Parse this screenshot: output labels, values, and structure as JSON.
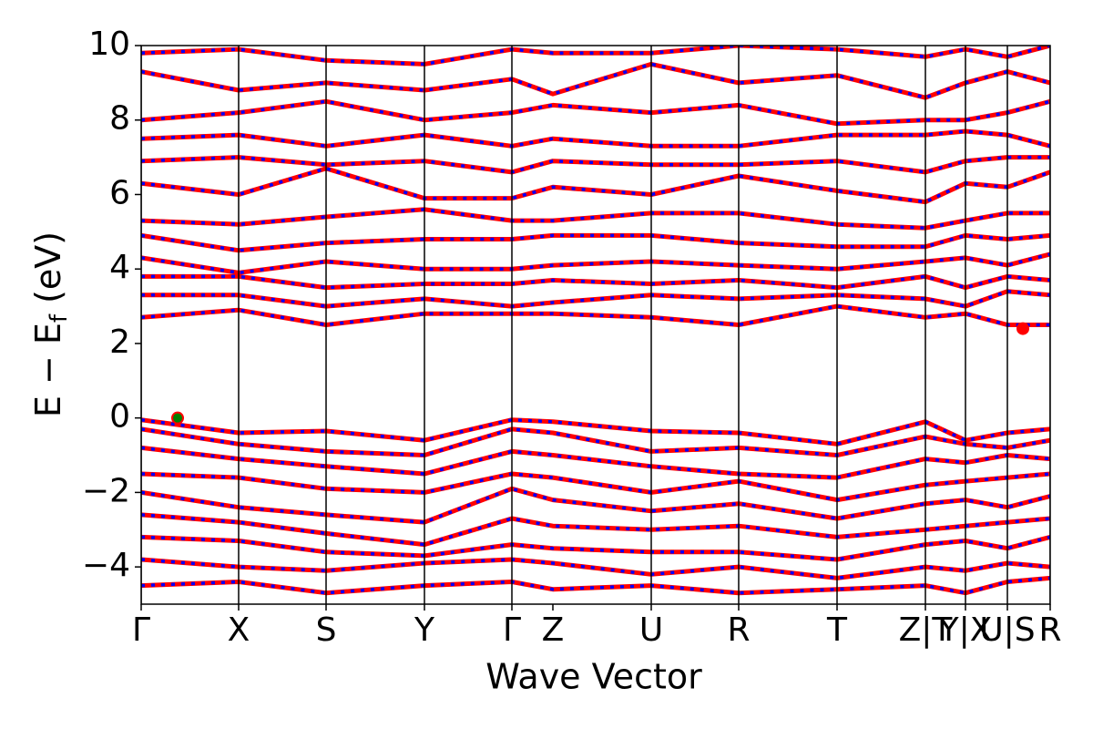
{
  "chart_data": {
    "type": "band-structure",
    "ylabel_parts": [
      "E − E",
      "f",
      "(eV)"
    ],
    "xlabel": "Wave Vector",
    "xlim": [
      0,
      9.98
    ],
    "ylim": [
      -5,
      10
    ],
    "yticks": [
      {
        "value": -4,
        "label": "−4"
      },
      {
        "value": -2,
        "label": "−2"
      },
      0,
      2,
      4,
      6,
      8,
      10
    ],
    "xticks": [
      {
        "value": 0,
        "label": "Γ"
      },
      {
        "value": 1.07,
        "label": "X"
      },
      {
        "value": 2.03,
        "label": "S"
      },
      {
        "value": 3.11,
        "label": "Y"
      },
      {
        "value": 4.07,
        "label": "Γ"
      },
      {
        "value": 4.52,
        "label": "Z"
      },
      {
        "value": 5.6,
        "label": "U"
      },
      {
        "value": 6.56,
        "label": "R"
      },
      {
        "value": 7.64,
        "label": "T"
      },
      {
        "value": 8.61,
        "label": "Z|T"
      },
      {
        "value": 9.05,
        "label": "Y|X"
      },
      {
        "value": 9.51,
        "label": "U|S"
      },
      {
        "value": 9.98,
        "label": "R"
      }
    ],
    "kpath_lines": [
      0,
      1.07,
      2.03,
      3.11,
      4.07,
      5.6,
      6.56,
      7.64,
      8.61,
      9.05,
      9.51,
      9.98
    ],
    "colors": [
      "#ff0000",
      "#0000ff"
    ],
    "x": [
      0,
      1.07,
      2.03,
      3.11,
      4.07,
      4.52,
      5.6,
      6.56,
      7.64,
      8.61,
      9.05,
      9.51,
      9.98
    ],
    "bands": [
      [
        -0.05,
        -0.4,
        -0.35,
        -0.6,
        -0.05,
        -0.1,
        -0.35,
        -0.4,
        -0.7,
        -0.1,
        -0.6,
        -0.4,
        -0.3
      ],
      [
        -0.3,
        -0.7,
        -0.9,
        -1.0,
        -0.3,
        -0.4,
        -0.9,
        -0.8,
        -1.0,
        -0.5,
        -0.7,
        -0.8,
        -0.6
      ],
      [
        -0.8,
        -1.1,
        -1.3,
        -1.5,
        -0.9,
        -1.0,
        -1.3,
        -1.5,
        -1.6,
        -1.1,
        -1.2,
        -1.0,
        -1.1
      ],
      [
        -1.5,
        -1.6,
        -1.9,
        -2.0,
        -1.5,
        -1.6,
        -2.0,
        -1.7,
        -2.2,
        -1.8,
        -1.7,
        -1.6,
        -1.5
      ],
      [
        -2.0,
        -2.4,
        -2.6,
        -2.8,
        -1.9,
        -2.2,
        -2.5,
        -2.3,
        -2.7,
        -2.3,
        -2.2,
        -2.4,
        -2.1
      ],
      [
        -2.6,
        -2.8,
        -3.1,
        -3.4,
        -2.7,
        -2.9,
        -3.0,
        -2.9,
        -3.2,
        -3.0,
        -2.9,
        -2.8,
        -2.7
      ],
      [
        -3.2,
        -3.3,
        -3.6,
        -3.7,
        -3.4,
        -3.5,
        -3.6,
        -3.6,
        -3.8,
        -3.4,
        -3.3,
        -3.5,
        -3.2
      ],
      [
        -3.8,
        -4.0,
        -4.1,
        -3.9,
        -3.8,
        -3.9,
        -4.2,
        -4.0,
        -4.3,
        -4.0,
        -4.1,
        -3.9,
        -4.0
      ],
      [
        -4.5,
        -4.4,
        -4.7,
        -4.5,
        -4.4,
        -4.6,
        -4.5,
        -4.7,
        -4.6,
        -4.5,
        -4.7,
        -4.4,
        -4.3
      ],
      [
        2.7,
        2.9,
        2.5,
        2.8,
        2.8,
        2.8,
        2.7,
        2.5,
        3.0,
        2.7,
        2.8,
        2.5,
        2.5
      ],
      [
        3.3,
        3.3,
        3.0,
        3.2,
        3.0,
        3.1,
        3.3,
        3.2,
        3.3,
        3.2,
        3.0,
        3.4,
        3.3
      ],
      [
        3.8,
        3.8,
        3.5,
        3.6,
        3.6,
        3.7,
        3.6,
        3.7,
        3.5,
        3.8,
        3.5,
        3.8,
        3.7
      ],
      [
        4.3,
        3.9,
        4.2,
        4.0,
        4.0,
        4.1,
        4.2,
        4.1,
        4.0,
        4.2,
        4.3,
        4.1,
        4.4
      ],
      [
        4.9,
        4.5,
        4.7,
        4.8,
        4.8,
        4.9,
        4.9,
        4.7,
        4.6,
        4.6,
        4.9,
        4.8,
        4.9
      ],
      [
        5.3,
        5.2,
        5.4,
        5.6,
        5.3,
        5.3,
        5.5,
        5.5,
        5.2,
        5.1,
        5.3,
        5.5,
        5.5
      ],
      [
        6.3,
        6.0,
        6.7,
        5.9,
        5.9,
        6.2,
        6.0,
        6.5,
        6.1,
        5.8,
        6.3,
        6.2,
        6.6
      ],
      [
        6.9,
        7.0,
        6.8,
        6.9,
        6.6,
        6.9,
        6.8,
        6.8,
        6.9,
        6.6,
        6.9,
        7.0,
        7.0
      ],
      [
        7.5,
        7.6,
        7.3,
        7.6,
        7.3,
        7.5,
        7.3,
        7.3,
        7.6,
        7.6,
        7.7,
        7.6,
        7.3
      ],
      [
        8.0,
        8.2,
        8.5,
        8.0,
        8.2,
        8.4,
        8.2,
        8.4,
        7.9,
        8.0,
        8.0,
        8.2,
        8.5
      ],
      [
        9.3,
        8.8,
        9.0,
        8.8,
        9.1,
        8.7,
        9.5,
        9.0,
        9.2,
        8.6,
        9.0,
        9.3,
        9.0
      ],
      [
        9.8,
        9.9,
        9.6,
        9.5,
        9.9,
        9.8,
        9.8,
        10.0,
        9.9,
        9.7,
        9.9,
        9.7,
        10.0
      ]
    ],
    "markers": [
      {
        "x": 0.4,
        "y": 0,
        "color": "#008000"
      },
      {
        "x": 9.68,
        "y": 2.4,
        "color": "#ff0000"
      }
    ]
  }
}
